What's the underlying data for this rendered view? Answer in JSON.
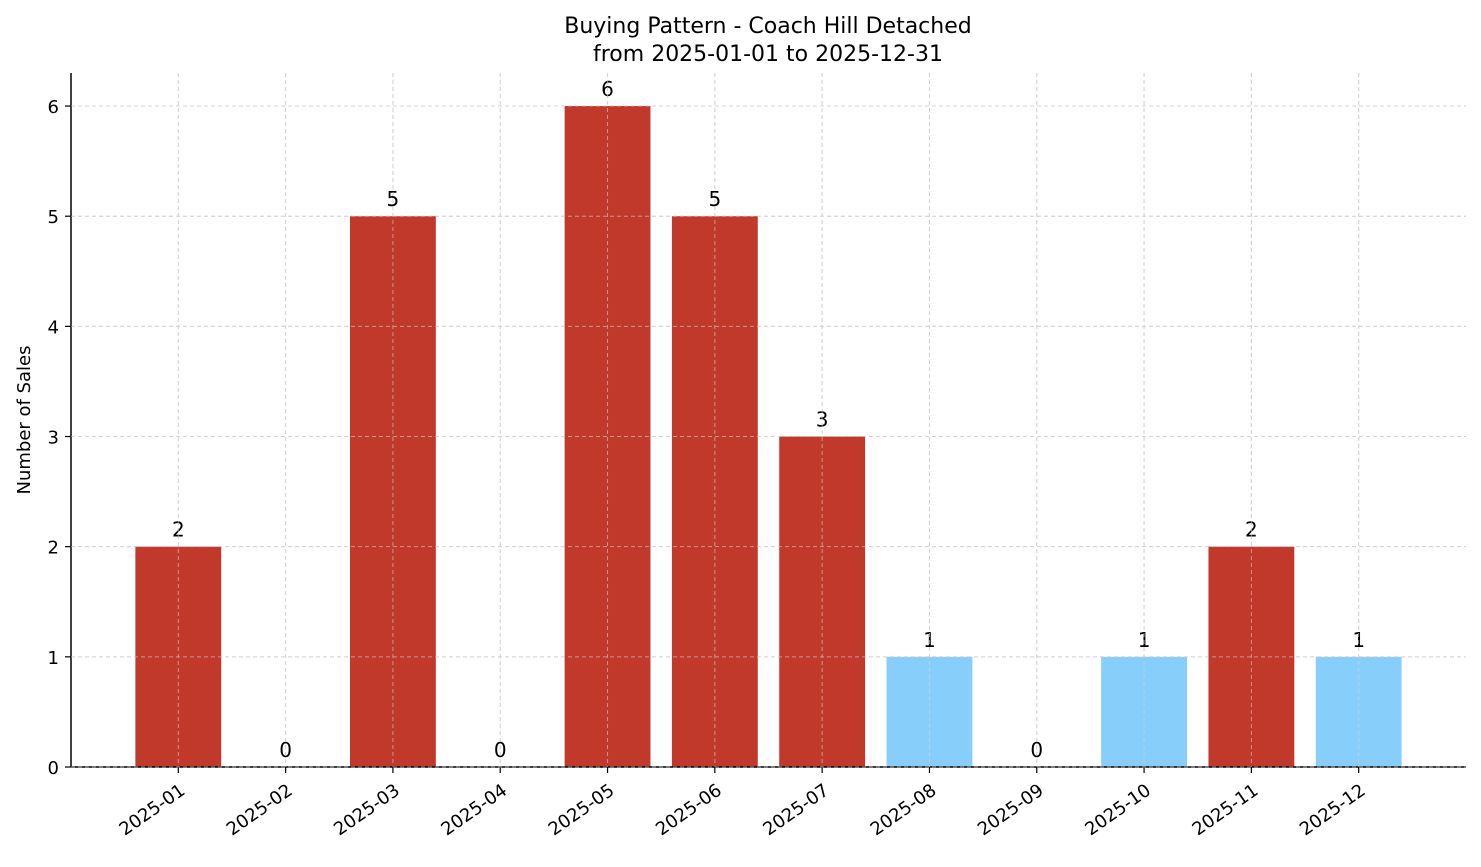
{
  "chart_data": {
    "type": "bar",
    "title": "Buying Pattern - Coach Hill Detached",
    "subtitle": "from 2025-01-01 to 2025-12-31",
    "xlabel": "",
    "ylabel": "Number of Sales",
    "categories": [
      "2025-01",
      "2025-02",
      "2025-03",
      "2025-04",
      "2025-05",
      "2025-06",
      "2025-07",
      "2025-08",
      "2025-09",
      "2025-10",
      "2025-11",
      "2025-12"
    ],
    "values": [
      2,
      0,
      5,
      0,
      6,
      5,
      3,
      1,
      0,
      1,
      2,
      1
    ],
    "bar_colors": [
      "#c0392b",
      "#c0392b",
      "#c0392b",
      "#c0392b",
      "#c0392b",
      "#c0392b",
      "#c0392b",
      "#87cefa",
      "#87cefa",
      "#87cefa",
      "#c0392b",
      "#87cefa"
    ],
    "yticks": [
      0,
      1,
      2,
      3,
      4,
      5,
      6
    ],
    "ylim": [
      0,
      6.3
    ],
    "xlim": [
      -1,
      12
    ],
    "grid": true,
    "legend": "none",
    "data_labels": true
  }
}
